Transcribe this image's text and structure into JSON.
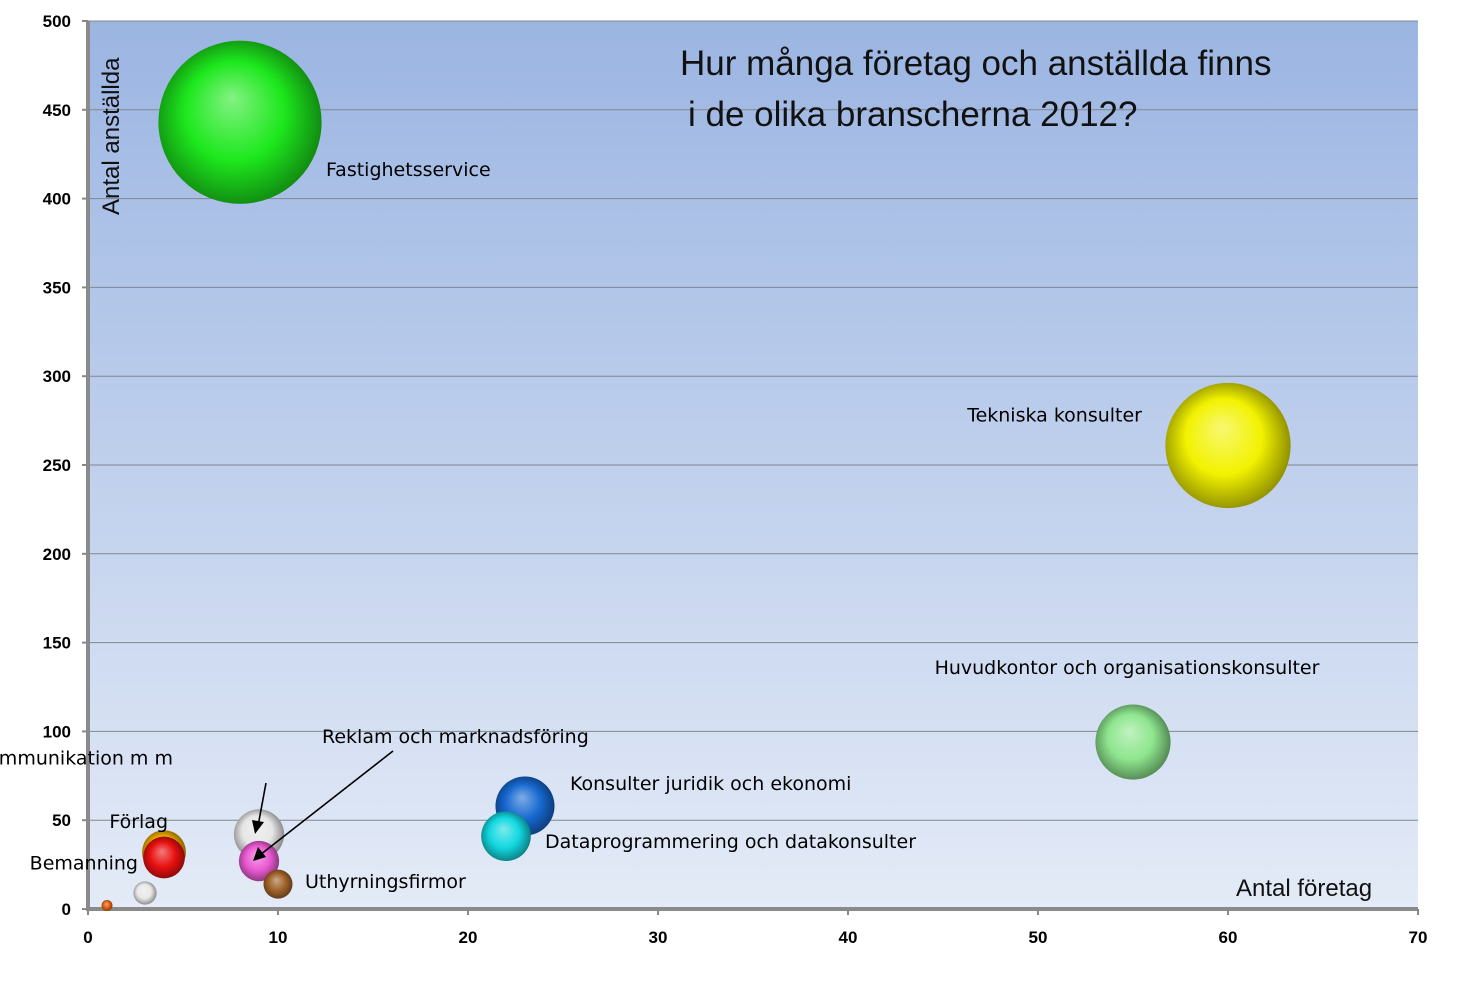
{
  "chart_data": {
    "type": "bubble",
    "title_lines": [
      "Hur många företag och anställda finns",
      "i de olika branscherna 2012?"
    ],
    "xlabel": "Antal företag",
    "ylabel": "Antal anställda",
    "xlim": [
      0,
      70
    ],
    "ylim": [
      0,
      500
    ],
    "xticks": [
      0,
      10,
      20,
      30,
      40,
      50,
      60,
      70
    ],
    "yticks": [
      0,
      50,
      100,
      150,
      200,
      250,
      300,
      350,
      400,
      450,
      500
    ],
    "grid": true,
    "points": [
      {
        "name": "Fastighetsservice",
        "x": 8,
        "y": 443,
        "size": 443,
        "color": "#1de81d"
      },
      {
        "name": "Tekniska konsulter",
        "x": 60,
        "y": 261,
        "size": 261,
        "color": "#f2f200"
      },
      {
        "name": "Huvudkontor och organisationskonsulter",
        "x": 55,
        "y": 94,
        "size": 94,
        "color": "#8ee68e"
      },
      {
        "name": "Konsulter juridik och ekonomi",
        "x": 23,
        "y": 58,
        "size": 58,
        "color": "#1668d0"
      },
      {
        "name": "Dataprogrammering och datakonsulter",
        "x": 22,
        "y": 41,
        "size": 41,
        "color": "#12d8e0"
      },
      {
        "name": "Konsulter kommunikation m m",
        "x": 9,
        "y": 42,
        "size": 42,
        "color": "#e6e6e6"
      },
      {
        "name": "Reklam och marknadsföring",
        "x": 9,
        "y": 27,
        "size": 27,
        "color": "#ea5ad2"
      },
      {
        "name": "Uthyrningsfirmor",
        "x": 10,
        "y": 14,
        "size": 14,
        "color": "#a0622a"
      },
      {
        "name": "Förlag",
        "x": 4,
        "y": 32,
        "size": 32,
        "color": "#e8a800"
      },
      {
        "name": "Bemanning",
        "x": 4,
        "y": 29,
        "size": 29,
        "color": "#e81010"
      },
      {
        "name": "",
        "x": 3,
        "y": 9,
        "size": 9,
        "color": "#e8e8e8"
      },
      {
        "name": "",
        "x": 1,
        "y": 2,
        "size": 2,
        "color": "#e06010"
      }
    ]
  }
}
